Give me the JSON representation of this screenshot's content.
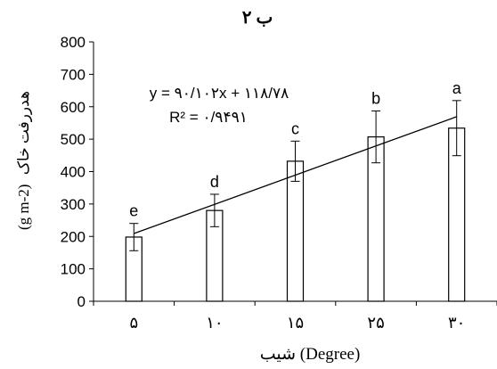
{
  "chart_data": {
    "type": "bar",
    "title": "ب ۲",
    "xlabel": "شیب (Degree)",
    "ylabel_fa": "هدررفت خاک",
    "ylabel_unit": "(g m-2)",
    "categories": [
      "۵",
      "۱۰",
      "۱۵",
      "۲۵",
      "۳۰"
    ],
    "x_values": [
      5,
      10,
      15,
      25,
      30
    ],
    "values": [
      198,
      280,
      432,
      507,
      534
    ],
    "errors": [
      42,
      50,
      62,
      80,
      85
    ],
    "letters": [
      "e",
      "d",
      "c",
      "b",
      "a"
    ],
    "ylim": [
      0,
      800
    ],
    "yticks": [
      0,
      100,
      200,
      300,
      400,
      500,
      600,
      700,
      800
    ],
    "trendline": {
      "equation": "y = ۹۰/۱۰۲x + ۱۱۸/۷۸",
      "r2": "R² = ۰/۹۴۹۱",
      "slope": 90.102,
      "intercept": 118.78
    },
    "grid": false,
    "legend": "none",
    "colors": {
      "bar_fill": "#ffffff",
      "stroke": "#000000"
    }
  }
}
